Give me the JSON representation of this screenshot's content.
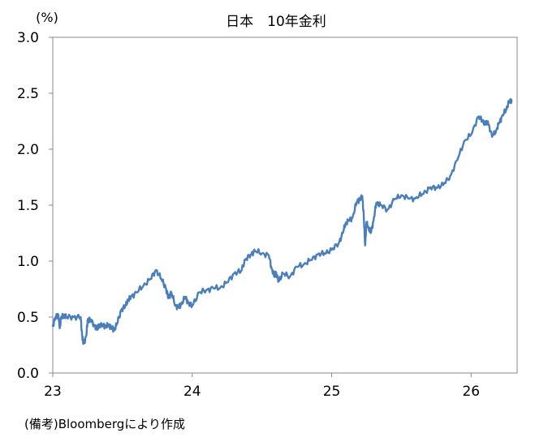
{
  "chart_data": {
    "type": "line",
    "title": "日本　10年金利",
    "y_unit": "(%)",
    "ylim": [
      0.0,
      3.0
    ],
    "y_ticks": [
      "3.0",
      "2.5",
      "2.0",
      "1.5",
      "1.0",
      "0.5",
      "0.0"
    ],
    "x_ticks": [
      "23",
      "24",
      "25",
      "26"
    ],
    "xlim": [
      2023.0,
      2026.33
    ],
    "grid": false,
    "line_color": "#4a7ebb",
    "series": [
      {
        "x": [
          2023.0,
          2023.02,
          2023.04,
          2023.05,
          2023.06,
          2023.08,
          2023.1,
          2023.15,
          2023.2,
          2023.21,
          2023.22,
          2023.24,
          2023.25,
          2023.27,
          2023.3,
          2023.32,
          2023.33,
          2023.36,
          2023.38,
          2023.4,
          2023.42,
          2023.44,
          2023.46,
          2023.49,
          2023.52,
          2023.54,
          2023.56,
          2023.6,
          2023.65,
          2023.7,
          2023.74,
          2023.78,
          2023.81,
          2023.83,
          2023.85,
          2023.88,
          2023.9,
          2023.92,
          2023.95,
          2023.97,
          2024.0,
          2024.05,
          2024.1,
          2024.15,
          2024.2,
          2024.25,
          2024.3,
          2024.35,
          2024.38,
          2024.42,
          2024.45,
          2024.5,
          2024.55,
          2024.57,
          2024.59,
          2024.6,
          2024.62,
          2024.65,
          2024.7,
          2024.75,
          2024.8,
          2024.85,
          2024.9,
          2024.95,
          2025.0,
          2025.05,
          2025.08,
          2025.1,
          2025.12,
          2025.15,
          2025.18,
          2025.2,
          2025.22,
          2025.23,
          2025.24,
          2025.25,
          2025.26,
          2025.28,
          2025.3,
          2025.32,
          2025.35,
          2025.4,
          2025.45,
          2025.5,
          2025.55,
          2025.6,
          2025.65,
          2025.7,
          2025.75,
          2025.8,
          2025.85,
          2025.9,
          2025.95,
          2026.0,
          2026.05,
          2026.08,
          2026.1,
          2026.12,
          2026.15,
          2026.18,
          2026.2,
          2026.22,
          2026.25,
          2026.27,
          2026.29
        ],
        "y": [
          0.42,
          0.5,
          0.52,
          0.4,
          0.5,
          0.51,
          0.5,
          0.5,
          0.5,
          0.34,
          0.26,
          0.33,
          0.47,
          0.48,
          0.42,
          0.39,
          0.43,
          0.43,
          0.41,
          0.43,
          0.41,
          0.38,
          0.44,
          0.56,
          0.6,
          0.65,
          0.68,
          0.72,
          0.78,
          0.84,
          0.92,
          0.84,
          0.76,
          0.67,
          0.72,
          0.6,
          0.59,
          0.61,
          0.68,
          0.63,
          0.6,
          0.72,
          0.74,
          0.76,
          0.76,
          0.81,
          0.89,
          0.91,
          1.01,
          1.06,
          1.09,
          1.07,
          1.05,
          0.93,
          0.86,
          0.9,
          0.82,
          0.89,
          0.86,
          0.95,
          0.97,
          1.01,
          1.06,
          1.07,
          1.1,
          1.16,
          1.25,
          1.34,
          1.36,
          1.39,
          1.53,
          1.55,
          1.58,
          1.4,
          1.14,
          1.35,
          1.31,
          1.25,
          1.36,
          1.52,
          1.5,
          1.46,
          1.55,
          1.59,
          1.56,
          1.56,
          1.6,
          1.65,
          1.66,
          1.68,
          1.76,
          1.9,
          2.07,
          2.13,
          2.29,
          2.26,
          2.22,
          2.25,
          2.11,
          2.17,
          2.23,
          2.29,
          2.35,
          2.42,
          2.44
        ]
      }
    ]
  },
  "source_note": "(備考)Bloombergにより作成"
}
